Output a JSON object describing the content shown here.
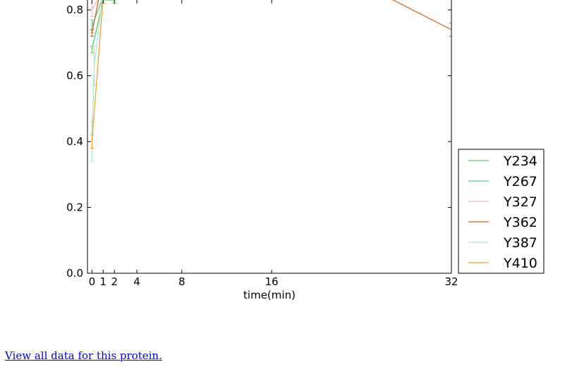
{
  "chart_data": {
    "type": "line",
    "xlabel": "time(min)",
    "ylabel": "",
    "x_ticks": [
      0,
      1,
      2,
      4,
      8,
      16,
      32
    ],
    "y_ticks": [
      0.0,
      0.2,
      0.4,
      0.6,
      0.8
    ],
    "y_tick_labels": [
      "0.0",
      "0.2",
      "0.4",
      "0.6",
      "0.8"
    ],
    "xlim": [
      -0.4,
      32
    ],
    "ylim": [
      0.0,
      0.83
    ],
    "legend_position": "outside-right-bottom",
    "series": [
      {
        "name": "Y234",
        "color": "#5dca68",
        "points": [
          [
            0,
            0.68,
            0.01
          ],
          [
            1,
            0.83,
            0.01
          ],
          [
            2,
            0.83,
            0.01
          ]
        ]
      },
      {
        "name": "Y267",
        "color": "#66c2a5",
        "points": [
          [
            0,
            0.75,
            0.02
          ],
          [
            1,
            0.84,
            0.02
          ]
        ]
      },
      {
        "name": "Y327",
        "color": "#f4b6c2",
        "points": [
          [
            0,
            0.8,
            0.02
          ],
          [
            1,
            0.86,
            0.02
          ]
        ]
      },
      {
        "name": "Y362",
        "color": "#d2691e",
        "points": [
          [
            0,
            0.73,
            0.01
          ],
          [
            1,
            0.9,
            0.01
          ],
          [
            24.5,
            0.87,
            0.01
          ],
          [
            32,
            0.74,
            0.02
          ]
        ]
      },
      {
        "name": "Y387",
        "color": "#a8e6cf",
        "points": [
          [
            0,
            0.4,
            0.06
          ],
          [
            0.2,
            0.63,
            0.06
          ],
          [
            1,
            0.86,
            0.04
          ]
        ]
      },
      {
        "name": "Y410",
        "color": "#f5a033",
        "points": [
          [
            0,
            0.4,
            0.02
          ],
          [
            1,
            0.84,
            0.02
          ]
        ]
      }
    ]
  },
  "footer": {
    "link_text": "View all data for this protein."
  }
}
